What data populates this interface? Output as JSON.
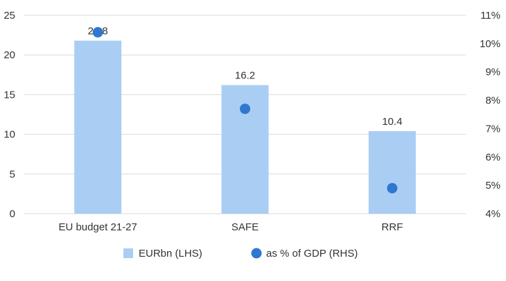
{
  "chart_data": {
    "type": "bar",
    "categories": [
      "EU budget 21-27",
      "SAFE",
      "RRF"
    ],
    "series": [
      {
        "name": "EURbn (LHS)",
        "type": "bar",
        "axis": "left",
        "values": [
          21.8,
          16.2,
          10.4
        ],
        "data_labels": [
          "21.8",
          "16.2",
          "10.4"
        ]
      },
      {
        "name": "as % of GDP (RHS)",
        "type": "scatter",
        "axis": "right",
        "values": [
          10.4,
          7.7,
          4.9
        ]
      }
    ],
    "y_left": {
      "min": 0,
      "max": 25,
      "ticks": [
        "0",
        "5",
        "10",
        "15",
        "20",
        "25"
      ]
    },
    "y_right": {
      "min": 4,
      "max": 11,
      "ticks": [
        "4%",
        "5%",
        "6%",
        "7%",
        "8%",
        "9%",
        "10%",
        "11%"
      ]
    },
    "grid": true,
    "legend_position": "bottom",
    "colors": {
      "bar": "#aacdf3",
      "dot": "#2f78cf",
      "grid": "#d9d9d9",
      "text": "#333333"
    }
  }
}
